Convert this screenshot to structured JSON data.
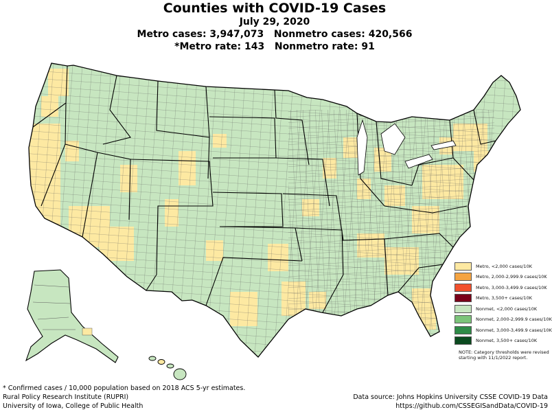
{
  "header": {
    "title": "Counties with COVID-19 Cases",
    "date": "July 29, 2020",
    "cases_line": "Metro cases: 3,947,073   Nonmetro cases: 420,566",
    "rate_line": "*Metro rate: 143   Nonmetro rate: 91"
  },
  "legend": {
    "items": [
      {
        "label": "Metro, <2,000 cases/10K",
        "color": "#fde9a2"
      },
      {
        "label": "Metro, 2,000-2,999.9 cases/10K",
        "color": "#f5a442"
      },
      {
        "label": "Metro, 3,000-3,499.9 cases/10K",
        "color": "#f2502d"
      },
      {
        "label": "Metro, 3,500+ cases/10K",
        "color": "#7a0019"
      },
      {
        "label": "Nonmet, <2,000 cases/10K",
        "color": "#c7e6c0"
      },
      {
        "label": "Nonmet, 2,000-2,999.9 cases/10K",
        "color": "#7cc47a"
      },
      {
        "label": "Nonmet, 3,000-3,499.9 cases/10K",
        "color": "#2e8b47"
      },
      {
        "label": "Nonmet, 3,500+ cases/10K",
        "color": "#0b4a1f"
      }
    ],
    "note": "NOTE: Category thresholds were revised starting with 11/1/2022 report."
  },
  "footer": {
    "footnote": "* Confirmed cases / 10,000 population based on 2018 ACS 5-yr estimates.",
    "org1": "Rural Policy Research Institute (RUPRI)",
    "org2": "University of Iowa, College of Public Health",
    "source": "Data source: Johns Hopkins University CSSE COVID-19 Data",
    "source_url": "https://github.com/CSSEGISandData/COVID-19"
  },
  "map": {
    "regions": [
      "contiguous-us",
      "alaska",
      "hawaii"
    ],
    "metro_color": "#fde9a2",
    "nonmetro_color": "#c7e6c0",
    "county_border_color": "#555555",
    "state_border_color": "#000000"
  }
}
